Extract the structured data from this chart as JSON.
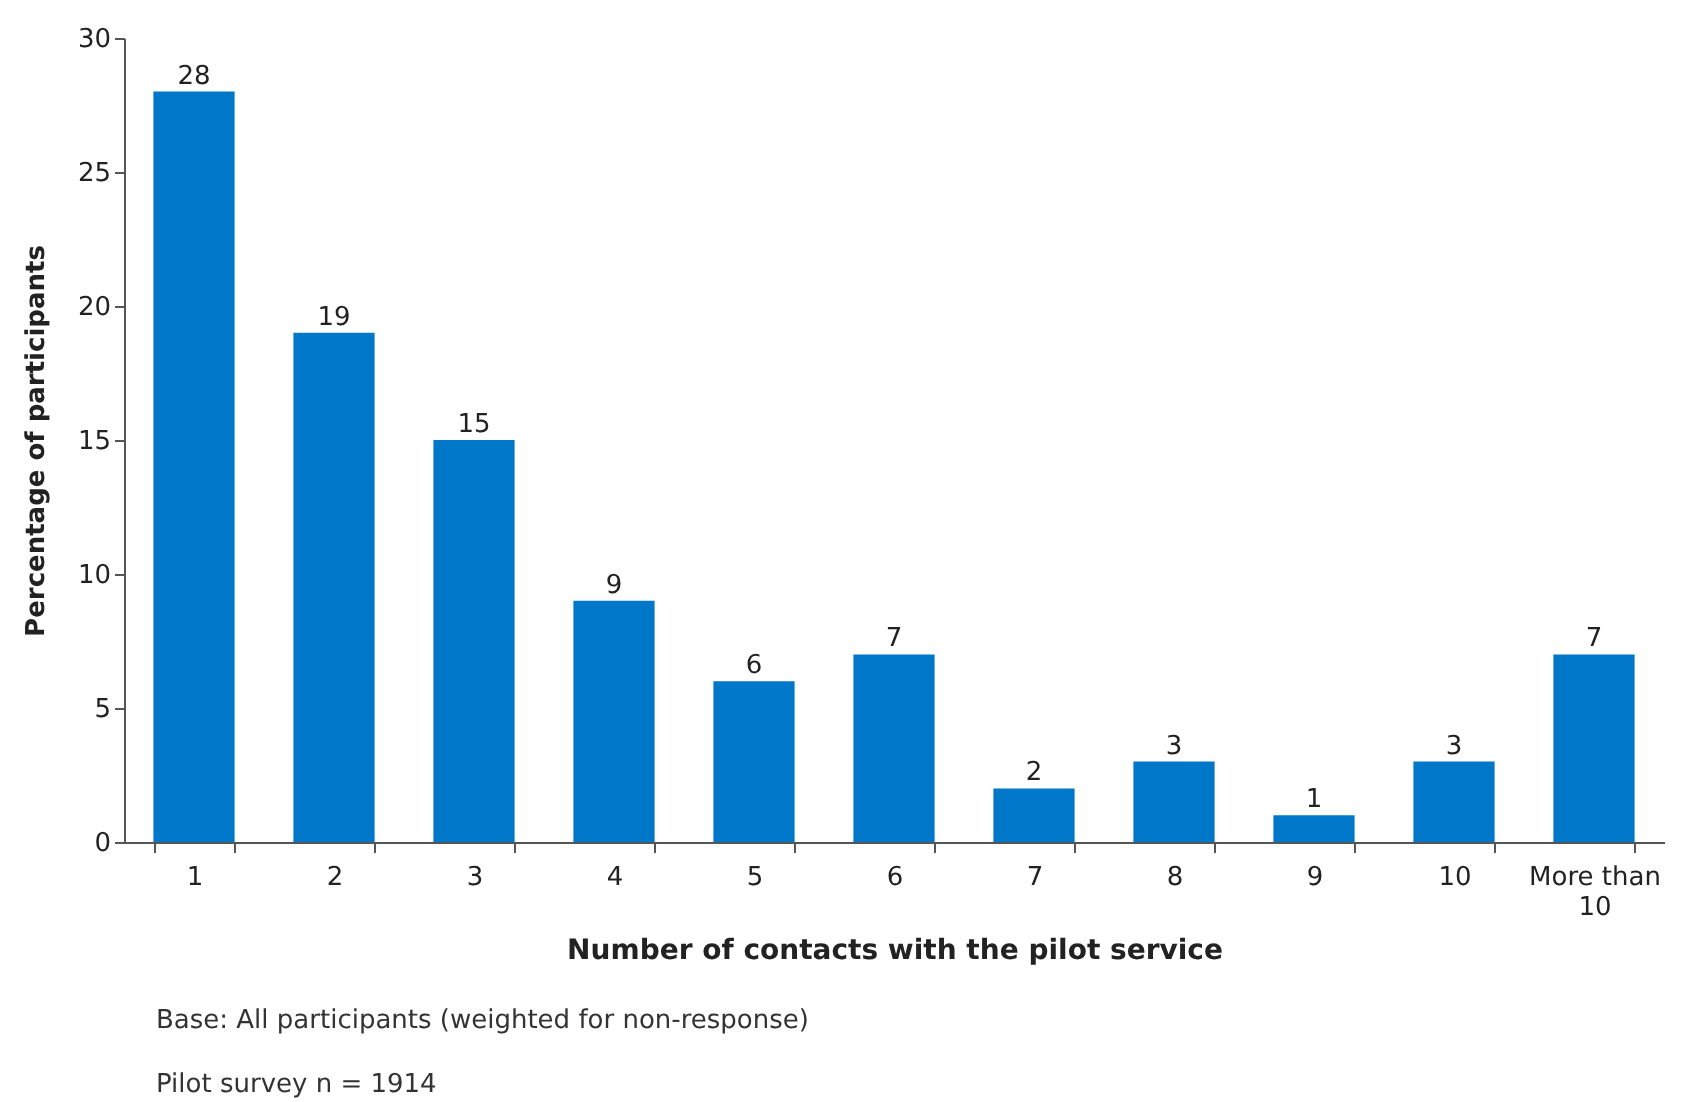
{
  "chart_data": {
    "type": "bar",
    "xlabel": "Number of contacts with the pilot service",
    "ylabel": "Percentage of participants",
    "categories": [
      "1",
      "2",
      "3",
      "4",
      "5",
      "6",
      "7",
      "8",
      "9",
      "10",
      "More than 10"
    ],
    "values": [
      28,
      19,
      15,
      9,
      6,
      7,
      2,
      3,
      1,
      3,
      7
    ],
    "color": "#0077c8",
    "ylim": [
      0,
      30
    ],
    "yticks": [
      0,
      5,
      10,
      15,
      20,
      25,
      30
    ],
    "data_labels": true,
    "grid": false,
    "annotations": [
      "Base: All participants (weighted for non-response)",
      "Pilot survey n = 1914"
    ]
  }
}
